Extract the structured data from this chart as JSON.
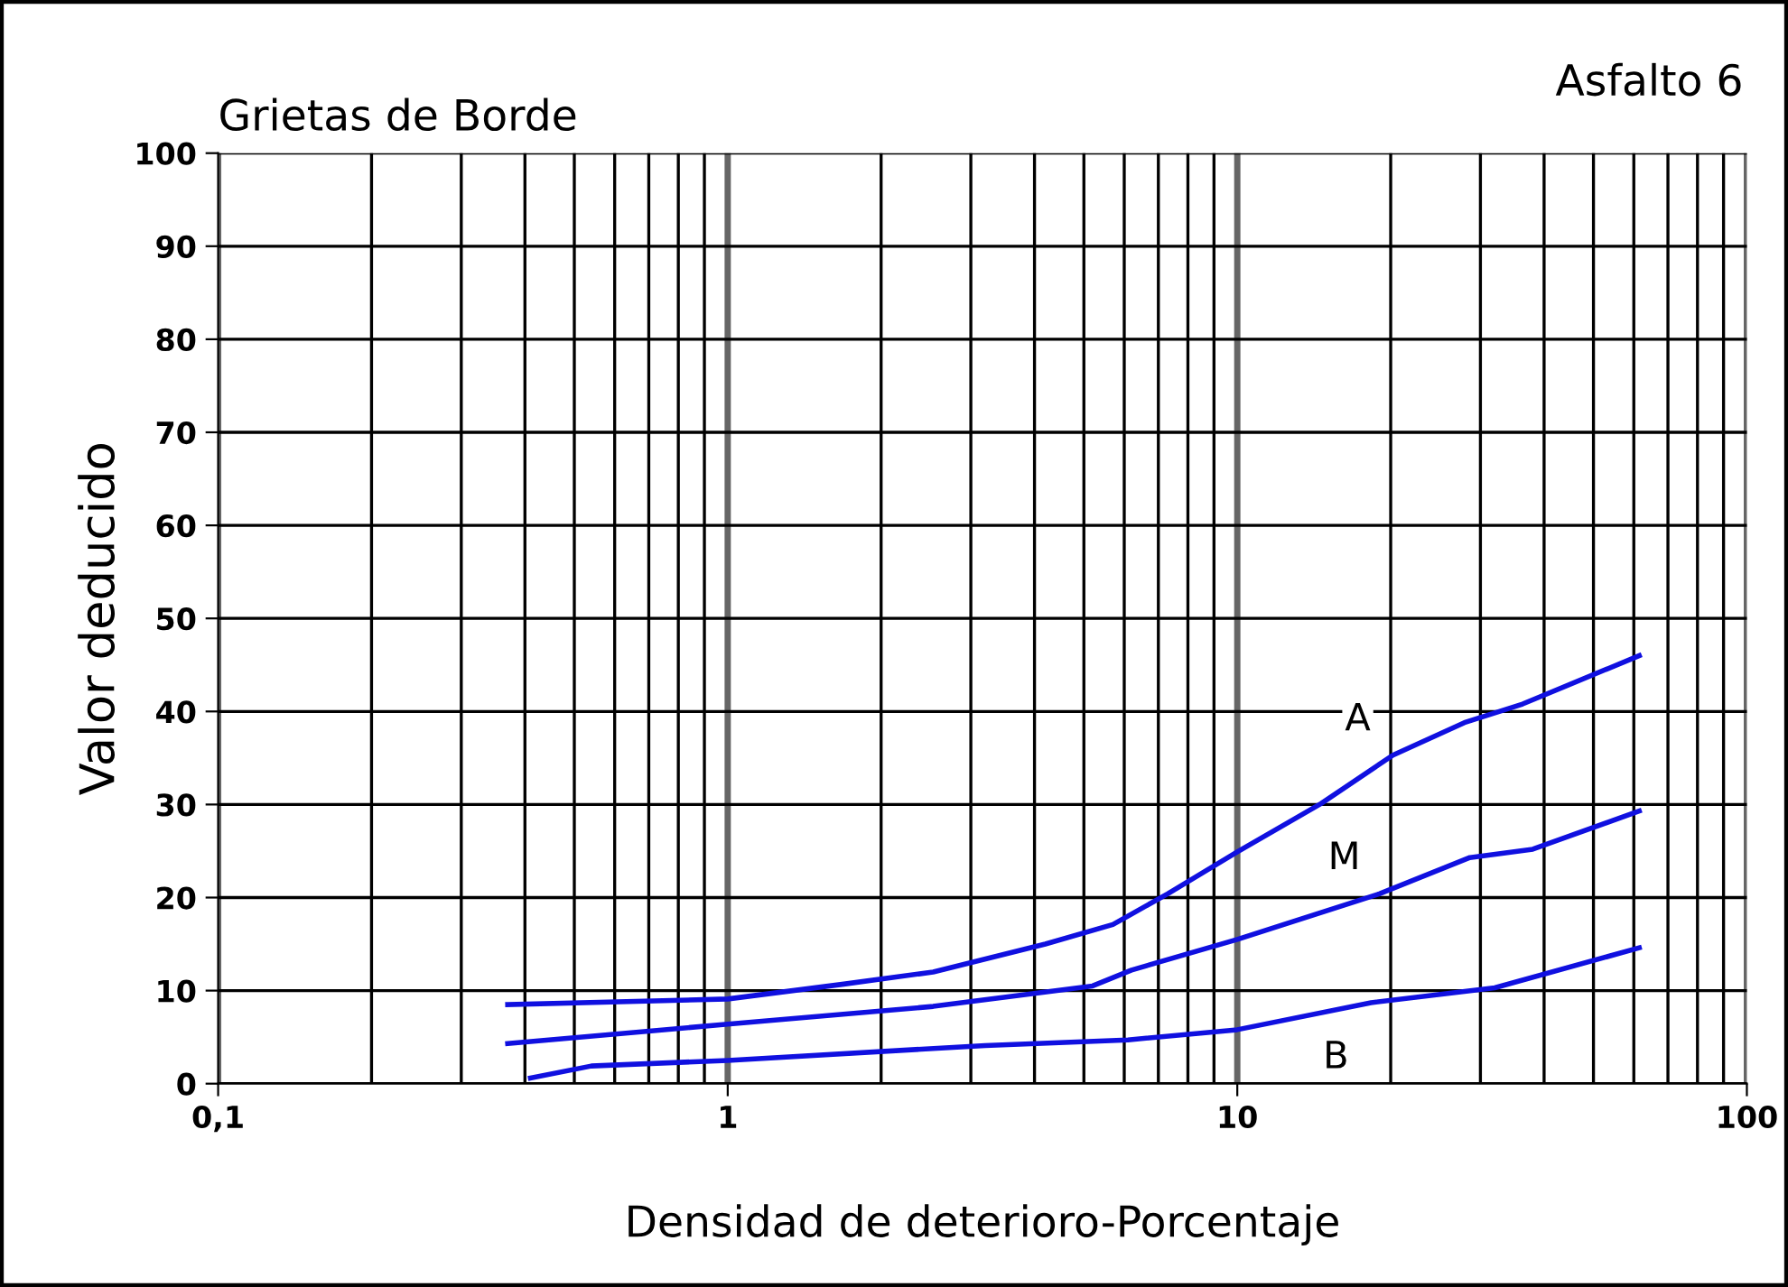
{
  "chart_data": {
    "type": "line",
    "title": "Grietas de Borde",
    "subtitle": "Asfalto 6",
    "xlabel": "Densidad de deterioro-Porcentaje",
    "ylabel": "Valor deducido",
    "log": "x",
    "xlim": [
      0.1,
      100
    ],
    "ylim": [
      0,
      100
    ],
    "xticks": [
      {
        "value": 0.1,
        "label": "0,1"
      },
      1,
      10,
      {
        "value": 100,
        "label": "100"
      }
    ],
    "yticks": [
      0,
      10,
      20,
      30,
      40,
      50,
      60,
      70,
      80,
      90,
      100
    ],
    "grid": true,
    "legend": false,
    "marker": "none",
    "line_style": "solid",
    "series": [
      {
        "name": "A",
        "color": "#1010e0",
        "x": [
          0.37,
          1,
          1.69,
          2.53,
          4.2,
          5.7,
          7.3,
          10,
          14.6,
          20.2,
          27.9,
          36.3,
          61.5
        ],
        "values": [
          8.5,
          9.1,
          10.7,
          12.0,
          15.0,
          17.1,
          20.4,
          24.9,
          30.1,
          35.3,
          38.8,
          40.8,
          46.0
        ]
      },
      {
        "name": "M",
        "color": "#1010e0",
        "x": [
          0.37,
          1,
          2.53,
          5.2,
          6.2,
          10,
          19,
          28.6,
          38,
          61.5
        ],
        "values": [
          4.3,
          6.4,
          8.3,
          10.5,
          12.2,
          15.5,
          20.4,
          24.3,
          25.2,
          29.3
        ]
      },
      {
        "name": "B",
        "color": "#1010e0",
        "x": [
          0.41,
          0.54,
          1,
          3.2,
          6.1,
          10,
          18.3,
          32,
          61.5
        ],
        "values": [
          0.6,
          1.9,
          2.5,
          4.1,
          4.7,
          5.8,
          8.7,
          10.3,
          14.6
        ]
      }
    ]
  }
}
